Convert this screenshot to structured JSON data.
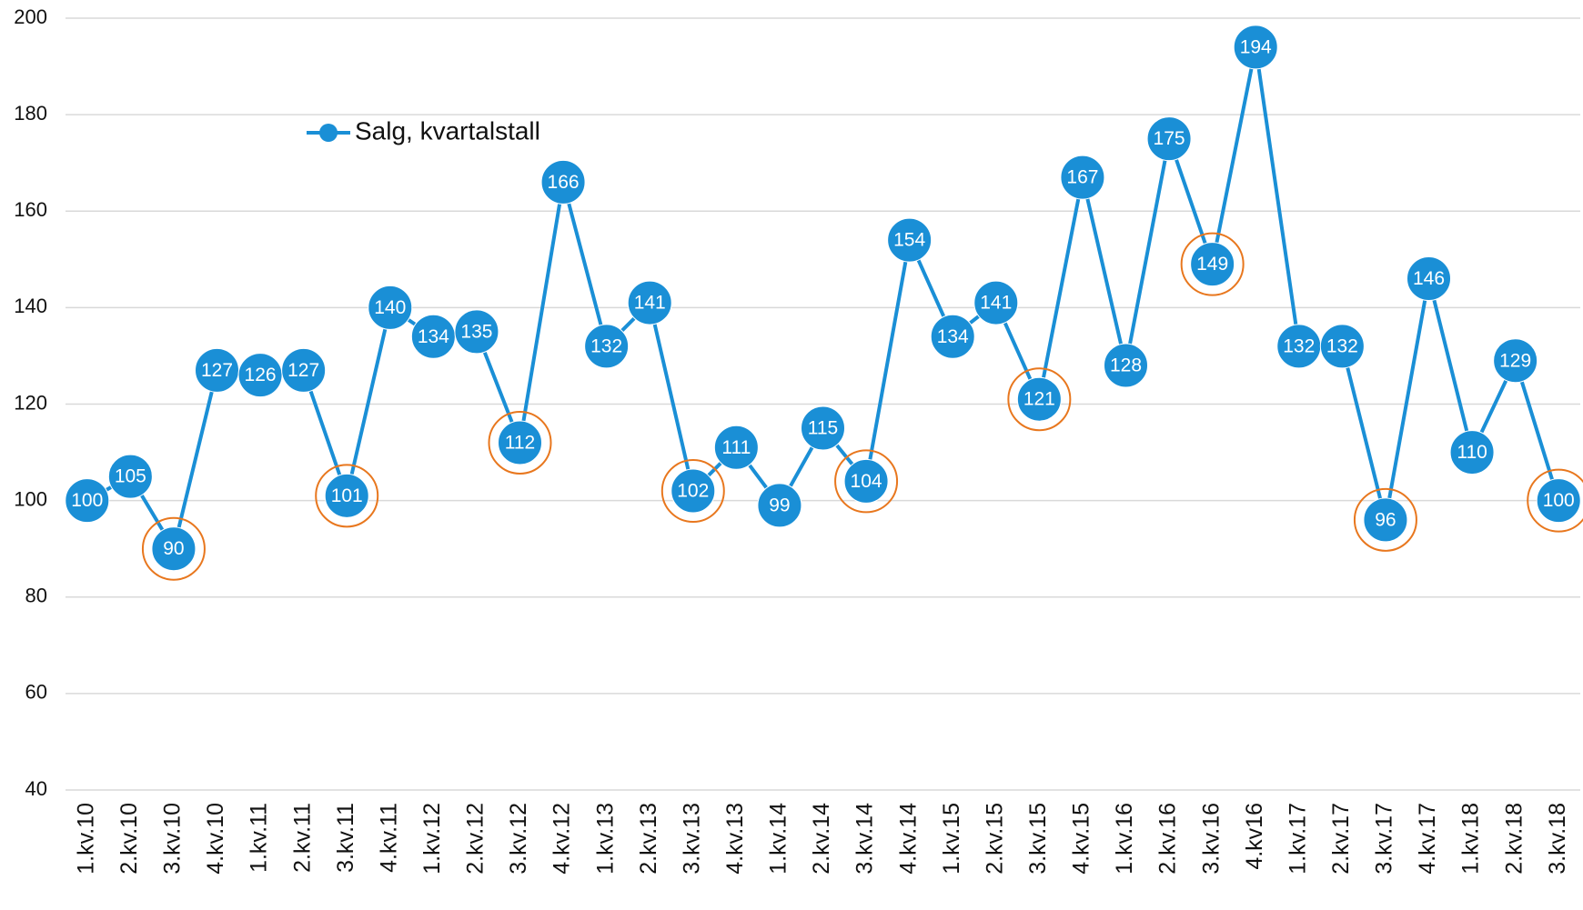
{
  "chart_data": {
    "type": "line",
    "categories": [
      "1.kv.10",
      "2.kv.10",
      "3.kv.10",
      "4.kv.10",
      "1.kv.11",
      "2.kv.11",
      "3.kv.11",
      "4.kv.11",
      "1.kv.12",
      "2.kv.12",
      "3.kv.12",
      "4.kv.12",
      "1.kv.13",
      "2.kv.13",
      "3.kv.13",
      "4.kv.13",
      "1.kv.14",
      "2.kv.14",
      "3.kv.14",
      "4.kv.14",
      "1.kv.15",
      "2.kv.15",
      "3.kv.15",
      "4.kv.15",
      "1.kv.16",
      "2.kv.16",
      "3.kv.16",
      "4.kv16",
      "1.kv.17",
      "2.kv.17",
      "3.kv.17",
      "4.kv.17",
      "1.kv.18",
      "2.kv.18",
      "3.kv.18"
    ],
    "series": [
      {
        "name": "Salg, kvartalstall",
        "color": "#1a8fd6",
        "values": [
          100,
          105,
          90,
          127,
          126,
          127,
          101,
          140,
          134,
          135,
          112,
          166,
          132,
          141,
          102,
          111,
          99,
          115,
          104,
          154,
          134,
          141,
          121,
          167,
          128,
          175,
          149,
          194,
          132,
          132,
          96,
          146,
          110,
          129,
          100
        ]
      }
    ],
    "highlight": {
      "color": "#e8771e",
      "categories": [
        "3.kv.10",
        "3.kv.11",
        "3.kv.12",
        "3.kv.13",
        "3.kv.14",
        "3.kv.15",
        "3.kv.16",
        "3.kv.17",
        "3.kv.18"
      ]
    },
    "ylim": [
      40,
      200
    ],
    "yticks": [
      40,
      60,
      80,
      100,
      120,
      140,
      160,
      180,
      200
    ],
    "grid": true,
    "legend": "top-left"
  }
}
